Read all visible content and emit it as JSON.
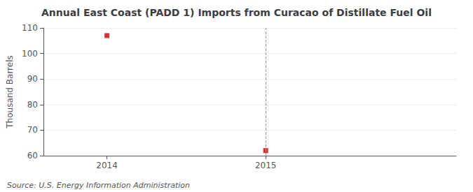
{
  "chart_data": {
    "type": "scatter",
    "title": "Annual East Coast (PADD 1) Imports from Curacao of Distillate Fuel Oil",
    "ylabel": "Thousand Barrels",
    "source": "Source: U.S. Energy Information Administration",
    "x": [
      2014,
      2015
    ],
    "values": [
      107,
      62
    ],
    "color": "#cc0000",
    "marker": "square",
    "xlim": [
      2013.6,
      2016.2
    ],
    "xticks": [
      2014,
      2015
    ],
    "ylim": [
      60,
      110
    ],
    "yticks": [
      60,
      70,
      80,
      90,
      100,
      110
    ],
    "grid": true,
    "vline_x": 2015
  }
}
